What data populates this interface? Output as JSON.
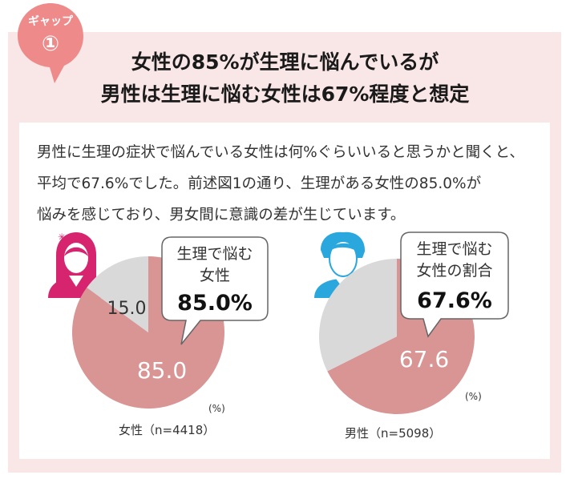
{
  "badge": {
    "label": "ギャップ",
    "number": "①",
    "color": "#ef8a8a"
  },
  "title": {
    "line1": "女性の85%が生理に悩んでいるが",
    "line2": "男性は生理に悩む女性は67%程度と想定"
  },
  "description": {
    "line1": "男性に生理の症状で悩んでいる女性は何%ぐらいいると思うかと聞くと、",
    "line2": "平均で67.6%でした。前述図1の通り、生理がある女性の85.0%が",
    "line3": "悩みを感じており、男女間に意識の差が生じています。"
  },
  "colors": {
    "panel": "#f9e6e6",
    "pie_main": "#d99494",
    "pie_rest": "#d9d9d9",
    "female_icon": "#d6246e",
    "male_icon": "#2aa7dc"
  },
  "chart_data": [
    {
      "type": "pie",
      "slices": [
        {
          "label": "85.0",
          "value": 85.0
        },
        {
          "label": "15.0",
          "value": 15.0
        }
      ],
      "callout": {
        "line1": "生理で悩む",
        "line2": "女性",
        "value": "85.0%"
      },
      "caption": "女性（n=4418）",
      "unit": "(%)",
      "icon": "female-person-icon"
    },
    {
      "type": "pie",
      "slices": [
        {
          "label": "67.6",
          "value": 67.6
        },
        {
          "label": "",
          "value": 32.4
        }
      ],
      "callout": {
        "line1": "生理で悩む",
        "line2": "女性の割合",
        "value": "67.6%"
      },
      "caption": "男性（n=5098）",
      "unit": "(%)",
      "icon": "male-person-icon"
    }
  ]
}
